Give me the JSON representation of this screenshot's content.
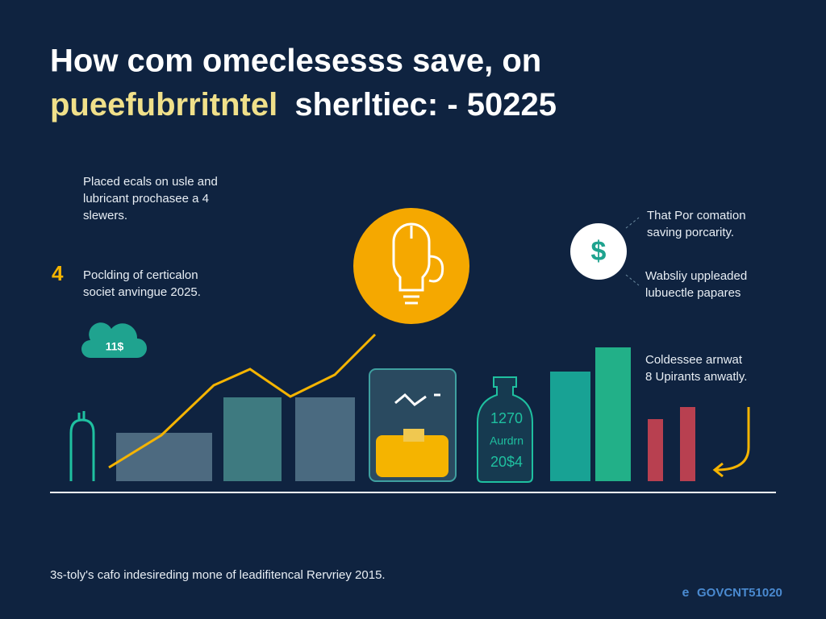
{
  "header": {
    "title_line1": "How com omeclesesss save, on",
    "title_highlight": "pueefubrritntel",
    "title_rest": "sherltiec: - 50225"
  },
  "left_notes": [
    {
      "lines": [
        "Placed ecals on usle and",
        "lubricant prochasee a 4",
        "slewers."
      ]
    },
    {
      "marker": "4",
      "lines": [
        "Poclding of certicalon",
        "societ anvingue 2025."
      ]
    }
  ],
  "cloud_label": "11$",
  "dollar_icon": "$",
  "right_notes": [
    {
      "lines": [
        "That Por comation",
        "saving porcarity."
      ]
    },
    {
      "lines": [
        "Wabsliy uppleaded",
        "lubuectle papares"
      ]
    },
    {
      "lines": [
        "Coldessee arnwat",
        "8 Upirants anwatly."
      ]
    }
  ],
  "bottle_lines": [
    "1270",
    "Aurdrn",
    "20$4"
  ],
  "footer": {
    "note": "3s-toly's cafo indesireding mone of leadifitencal Rervriey 2015.",
    "brand_icon": "e",
    "brand": "GOVCNT51020"
  }
}
